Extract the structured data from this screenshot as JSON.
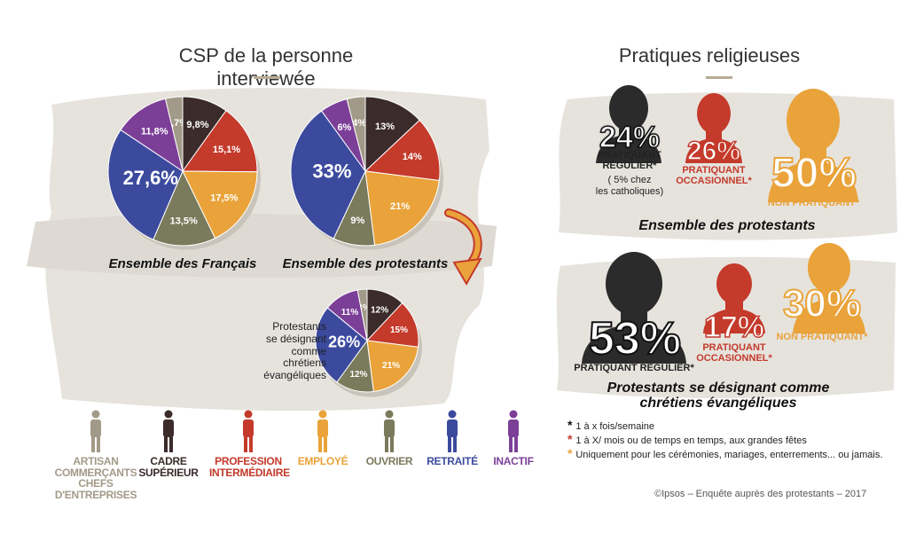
{
  "left_title": "CSP de la personne interviewée",
  "right_title": "Pratiques religieuses",
  "colors": {
    "artisan": "#a29a88",
    "cadre": "#3b2b2b",
    "profession": "#c43a2b",
    "employe": "#e9a33a",
    "ouvrier": "#7a7a5c",
    "retraite": "#3c4a9e",
    "inactif": "#7c3f98"
  },
  "chart_data": [
    {
      "type": "pie",
      "title": "Ensemble des Français",
      "categories": [
        "Artisan commerçants chefs d'entreprises",
        "Cadre supérieur",
        "Profession intermédiaire",
        "Employé",
        "Ouvrier",
        "Retraité",
        "Inactif"
      ],
      "values": [
        3.7,
        9.8,
        15.1,
        17.5,
        13.5,
        27.6,
        11.8
      ],
      "labels": [
        "3,7%",
        "9,8%",
        "15,1%",
        "17,5%",
        "13,5%",
        "27,6%",
        "11,8%"
      ]
    },
    {
      "type": "pie",
      "title": "Ensemble des protestants",
      "categories": [
        "Artisan commerçants chefs d'entreprises",
        "Cadre supérieur",
        "Profession intermédiaire",
        "Employé",
        "Ouvrier",
        "Retraité",
        "Inactif"
      ],
      "values": [
        4,
        13,
        14,
        21,
        9,
        33,
        6
      ],
      "labels": [
        "4%",
        "13%",
        "14%",
        "21%",
        "9%",
        "33%",
        "6%"
      ]
    },
    {
      "type": "pie",
      "title": "Protestants se désignant comme chrétiens évangéliques",
      "categories": [
        "Artisan commerçants chefs d'entreprises",
        "Cadre supérieur",
        "Profession intermédiaire",
        "Employé",
        "Ouvrier",
        "Retraité",
        "Inactif"
      ],
      "values": [
        3,
        12,
        15,
        21,
        12,
        26,
        11
      ],
      "labels": [
        "3%",
        "12%",
        "15%",
        "21%",
        "12%",
        "26%",
        "11%"
      ]
    }
  ],
  "legend": [
    {
      "label_1": "ARTISAN COMMERÇANTS",
      "label_2": "CHEFS D'ENTREPRISES",
      "color": "#a29a88",
      "icon": "merchant-figure-icon"
    },
    {
      "label_1": "CADRE",
      "label_2": "SUPÉRIEUR",
      "color": "#3b2b2b",
      "icon": "executive-figure-icon"
    },
    {
      "label_1": "PROFESSION",
      "label_2": "INTERMÉDIAIRE",
      "color": "#c43a2b",
      "icon": "professional-figure-icon"
    },
    {
      "label_1": "EMPLOYÉ",
      "label_2": "",
      "color": "#e9a33a",
      "icon": "employee-figure-icon"
    },
    {
      "label_1": "OUVRIER",
      "label_2": "",
      "color": "#7a7a5c",
      "icon": "worker-figure-icon"
    },
    {
      "label_1": "RETRAITÉ",
      "label_2": "",
      "color": "#3c4a9e",
      "icon": "retiree-figure-icon"
    },
    {
      "label_1": "INACTIF",
      "label_2": "",
      "color": "#7c3f98",
      "icon": "inactive-figure-icon"
    }
  ],
  "evangelical_label": "Protestants\nse désignant comme\nchrétiens évangéliques",
  "practice": {
    "group1": {
      "subtitle": "Ensemble des protestants",
      "regular": {
        "pct": "24%",
        "label": "PRATIQUANT\nRÉGULIER*",
        "note": "( 5% chez\nles catholiques)"
      },
      "occasional": {
        "pct": "26%",
        "label": "PRATIQUANT\nOCCASIONNEL*"
      },
      "non": {
        "pct": "50%",
        "label": "NON PRATIQUANT*"
      }
    },
    "group2": {
      "subtitle": "Protestants se désignant comme\nchrétiens évangéliques",
      "regular": {
        "pct": "53%",
        "label": "PRATIQUANT RÉGULIER*"
      },
      "occasional": {
        "pct": "17%",
        "label": "PRATIQUANT\nOCCASIONNEL*"
      },
      "non": {
        "pct": "30%",
        "label": "NON PRATIQUANT*"
      }
    }
  },
  "footnotes": [
    {
      "mark": "*",
      "color": "#111111",
      "text": "1 à x fois/semaine"
    },
    {
      "mark": "*",
      "color": "#c43a2b",
      "text": "1 à X/ mois ou de temps en temps, aux grandes fêtes"
    },
    {
      "mark": "*",
      "color": "#e9a33a",
      "text": "Uniquement pour les cérémonies, mariages, enterrements... ou jamais."
    }
  ],
  "source": "©Ipsos – Enquête auprès des protestants – 2017"
}
